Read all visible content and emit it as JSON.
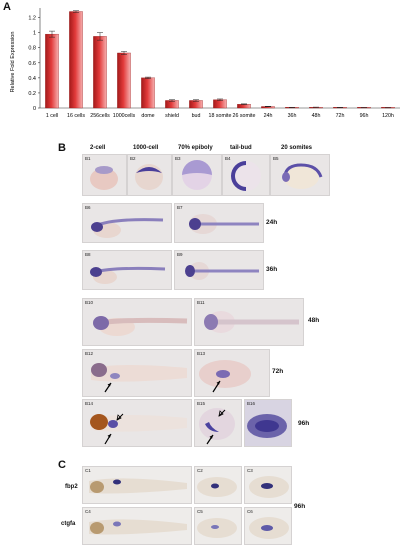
{
  "panel_labels": {
    "a": "A",
    "b": "B",
    "c": "C"
  },
  "chart_data": {
    "type": "bar",
    "categories": [
      "1 cell",
      "16 cells",
      "256cells",
      "1000cells",
      "dome",
      "shield",
      "bud",
      "18 somite",
      "26 somite",
      "24h",
      "36h",
      "48h",
      "72h",
      "96h",
      "120h"
    ],
    "values": [
      0.98,
      1.28,
      0.95,
      0.73,
      0.4,
      0.1,
      0.1,
      0.11,
      0.05,
      0.02,
      0.008,
      0.01,
      0.006,
      0.004,
      0.003
    ],
    "errors": [
      0.04,
      0.01,
      0.05,
      0.02,
      0.01,
      0.01,
      0.01,
      0.01,
      0.005,
      0.003,
      0.002,
      0.002,
      0.002,
      0.001,
      0.001
    ],
    "ylabel": "Relative Fold Expression",
    "xlabel": "",
    "ylim": [
      0,
      1.3
    ],
    "yticks": [
      "0",
      "0.2",
      "0.4",
      "0.6",
      "0.8",
      "1",
      "1.2"
    ],
    "ytick_values": [
      0,
      0.2,
      0.4,
      0.6,
      0.8,
      1.0,
      1.2
    ],
    "bar_color": "#e23a3a",
    "grid": false
  },
  "panel_b": {
    "stage_headers": [
      "2-cell",
      "1000-cell",
      "70% epiboly",
      "tail-bud",
      "20 somites"
    ],
    "time_labels": [
      "24h",
      "36h",
      "48h",
      "72h",
      "96h"
    ],
    "image_labels": [
      "B1",
      "B2",
      "B3",
      "B4",
      "B5",
      "B6",
      "B7",
      "B8",
      "B9",
      "B10",
      "B11",
      "B12",
      "B13",
      "B14",
      "B15",
      "B16"
    ]
  },
  "panel_c": {
    "genes": [
      "fbp2",
      "ctgfa"
    ],
    "time_label": "96h",
    "image_labels": [
      "C1",
      "C2",
      "C3",
      "C4",
      "C5",
      "C6"
    ]
  }
}
